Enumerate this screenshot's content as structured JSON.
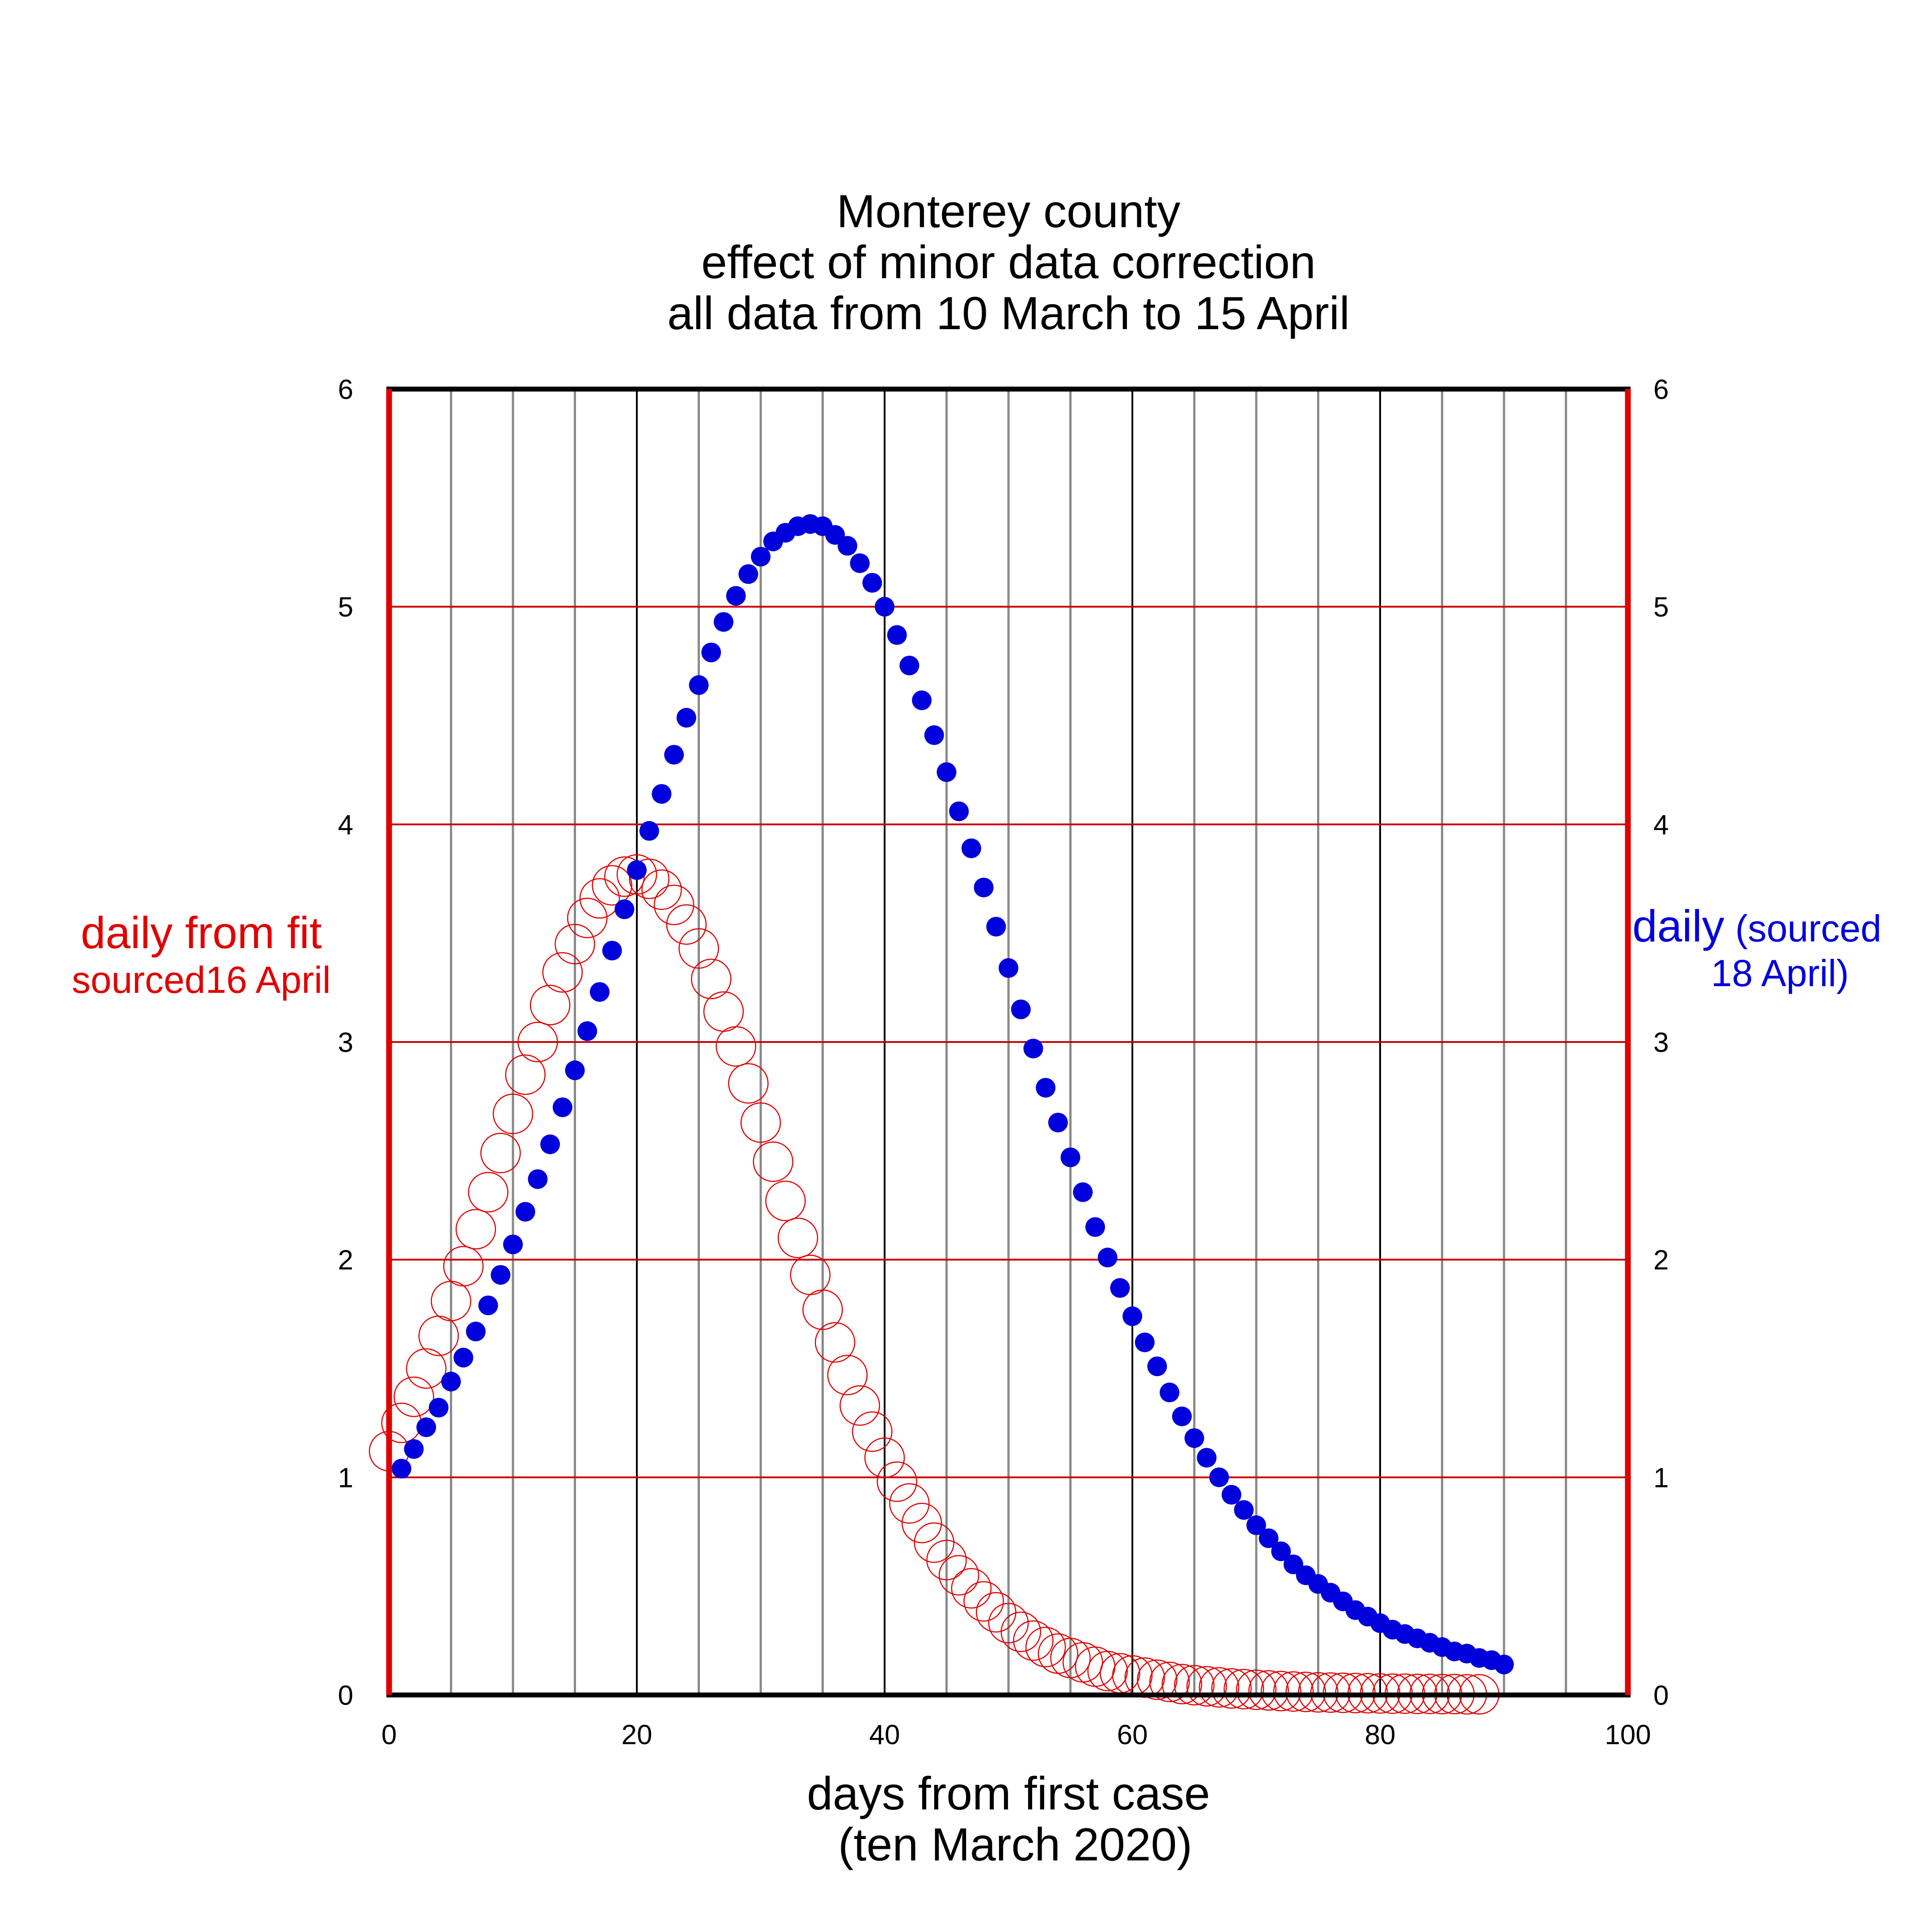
{
  "chart_data": {
    "type": "scatter",
    "title_lines": [
      "Monterey county",
      "effect of minor data correction",
      "all data from 10 March to 15 April"
    ],
    "xlabel_lines": [
      "days from first case",
      "(ten March 2020)"
    ],
    "left_label_lines": [
      "daily from fit",
      "sourced16 April"
    ],
    "right_label": {
      "line1_a": "daily",
      "line1_b": "(sourced",
      "line2": "18 April)"
    },
    "xlim": [
      0,
      100
    ],
    "ylim": [
      0,
      6
    ],
    "x_ticks": [
      0,
      20,
      40,
      60,
      80,
      100
    ],
    "y_ticks": [
      0,
      1,
      2,
      3,
      4,
      5,
      6
    ],
    "grid": true,
    "colors": {
      "left_axis": "#e00000",
      "blue_series": "#0000dd",
      "red_series": "#e00000",
      "minor_grid": "#888888",
      "major_grid": "#000000",
      "horizontal_grid": "#cc0000"
    },
    "series": [
      {
        "style": "filled-circle",
        "color": "#0000dd",
        "x": [
          1,
          2,
          3,
          4,
          5,
          6,
          7,
          8,
          9,
          10,
          11,
          12,
          13,
          14,
          15,
          16,
          17,
          18,
          19,
          20,
          21,
          22,
          23,
          24,
          25,
          26,
          27,
          28,
          29,
          30,
          31,
          32,
          33,
          34,
          35,
          36,
          37,
          38,
          39,
          40,
          41,
          42,
          43,
          44,
          45,
          46,
          47,
          48,
          49,
          50,
          51,
          52,
          53,
          54,
          55,
          56,
          57,
          58,
          59,
          60,
          61,
          62,
          63,
          64,
          65,
          66,
          67,
          68,
          69,
          70,
          71,
          72,
          73,
          74,
          75,
          76,
          77,
          78,
          79,
          80,
          81,
          82,
          83,
          84,
          85,
          86,
          87,
          88,
          89,
          90
        ],
        "y": [
          1.04,
          1.13,
          1.23,
          1.32,
          1.44,
          1.55,
          1.67,
          1.79,
          1.93,
          2.07,
          2.22,
          2.37,
          2.53,
          2.7,
          2.87,
          3.05,
          3.23,
          3.42,
          3.61,
          3.79,
          3.97,
          4.14,
          4.32,
          4.49,
          4.64,
          4.79,
          4.93,
          5.05,
          5.15,
          5.23,
          5.3,
          5.34,
          5.37,
          5.38,
          5.37,
          5.33,
          5.28,
          5.2,
          5.11,
          5.0,
          4.87,
          4.73,
          4.57,
          4.41,
          4.24,
          4.06,
          3.89,
          3.71,
          3.53,
          3.34,
          3.15,
          2.97,
          2.79,
          2.63,
          2.47,
          2.31,
          2.15,
          2.01,
          1.87,
          1.74,
          1.62,
          1.51,
          1.39,
          1.28,
          1.18,
          1.09,
          1.0,
          0.92,
          0.85,
          0.78,
          0.72,
          0.66,
          0.6,
          0.55,
          0.51,
          0.47,
          0.43,
          0.39,
          0.36,
          0.33,
          0.3,
          0.28,
          0.26,
          0.24,
          0.22,
          0.2,
          0.19,
          0.17,
          0.16,
          0.14
        ]
      },
      {
        "style": "open-circle",
        "color": "#e00000",
        "x": [
          0,
          1,
          2,
          3,
          4,
          5,
          6,
          7,
          8,
          9,
          10,
          11,
          12,
          13,
          14,
          15,
          16,
          17,
          18,
          19,
          20,
          21,
          22,
          23,
          24,
          25,
          26,
          27,
          28,
          29,
          30,
          31,
          32,
          33,
          34,
          35,
          36,
          37,
          38,
          39,
          40,
          41,
          42,
          43,
          44,
          45,
          46,
          47,
          48,
          49,
          50,
          51,
          52,
          53,
          54,
          55,
          56,
          57,
          58,
          59,
          60,
          61,
          62,
          63,
          64,
          65,
          66,
          67,
          68,
          69,
          70,
          71,
          72,
          73,
          74,
          75,
          76,
          77,
          78,
          79,
          80,
          81,
          82,
          83,
          84,
          85,
          86,
          87,
          88
        ],
        "y": [
          1.12,
          1.25,
          1.37,
          1.5,
          1.65,
          1.81,
          1.97,
          2.14,
          2.31,
          2.49,
          2.67,
          2.85,
          3.0,
          3.17,
          3.32,
          3.45,
          3.57,
          3.66,
          3.72,
          3.76,
          3.77,
          3.75,
          3.7,
          3.63,
          3.54,
          3.43,
          3.29,
          3.14,
          2.98,
          2.81,
          2.63,
          2.45,
          2.27,
          2.1,
          1.93,
          1.77,
          1.62,
          1.47,
          1.33,
          1.21,
          1.09,
          0.98,
          0.88,
          0.79,
          0.7,
          0.62,
          0.55,
          0.49,
          0.43,
          0.38,
          0.33,
          0.29,
          0.25,
          0.22,
          0.19,
          0.17,
          0.15,
          0.13,
          0.11,
          0.1,
          0.09,
          0.08,
          0.07,
          0.06,
          0.05,
          0.045,
          0.04,
          0.035,
          0.03,
          0.027,
          0.024,
          0.021,
          0.018,
          0.016,
          0.014,
          0.012,
          0.011,
          0.01,
          0.009,
          0.008,
          0.007,
          0.006,
          0.006,
          0.005,
          0.005,
          0.004,
          0.004,
          0.003,
          0.003
        ]
      }
    ]
  }
}
